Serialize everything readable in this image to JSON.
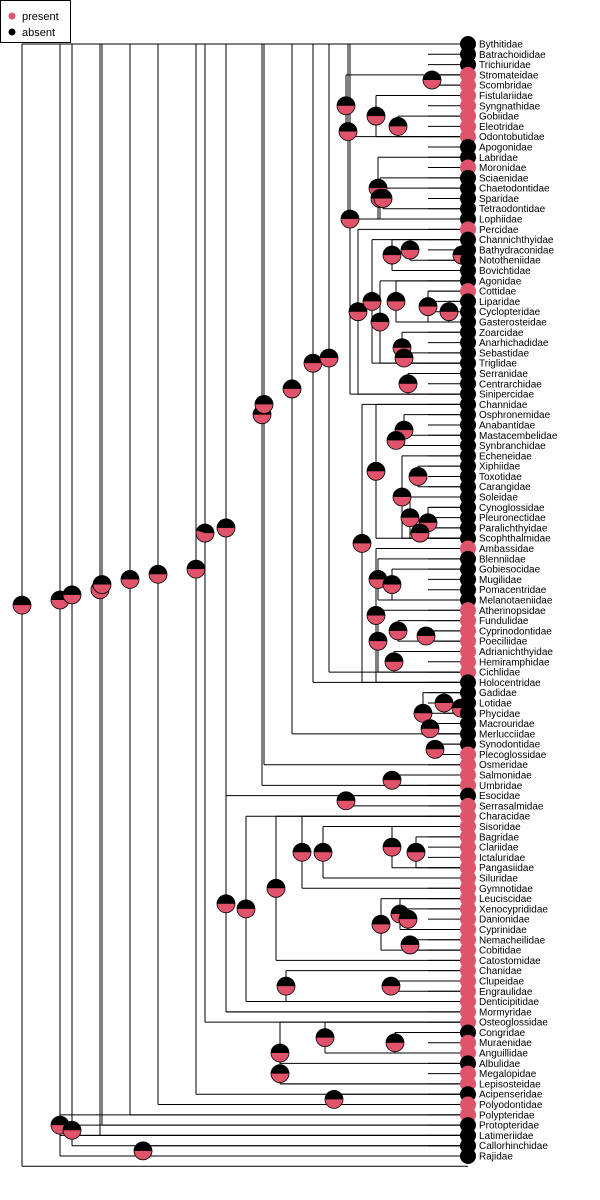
{
  "legend": {
    "states": [
      {
        "label": "present",
        "color": "#DF536B"
      },
      {
        "label": "absent",
        "color": "#000000"
      }
    ]
  },
  "tree": {
    "tips": [
      {
        "name": "Bythitidae",
        "state": "absent"
      },
      {
        "name": "Batrachoididae",
        "state": "absent"
      },
      {
        "name": "Trichiuridae",
        "state": "absent"
      },
      {
        "name": "Stromateidae",
        "state": "present"
      },
      {
        "name": "Scombridae",
        "state": "present"
      },
      {
        "name": "Fistulariidae",
        "state": "present"
      },
      {
        "name": "Syngnathidae",
        "state": "present"
      },
      {
        "name": "Gobiidae",
        "state": "present"
      },
      {
        "name": "Eleotridae",
        "state": "present"
      },
      {
        "name": "Odontobutidae",
        "state": "present"
      },
      {
        "name": "Apogonidae",
        "state": "absent"
      },
      {
        "name": "Labridae",
        "state": "absent"
      },
      {
        "name": "Moronidae",
        "state": "present"
      },
      {
        "name": "Sciaenidae",
        "state": "absent"
      },
      {
        "name": "Chaetodontidae",
        "state": "absent"
      },
      {
        "name": "Sparidae",
        "state": "absent"
      },
      {
        "name": "Tetraodontidae",
        "state": "absent"
      },
      {
        "name": "Lophiidae",
        "state": "absent"
      },
      {
        "name": "Percidae",
        "state": "present"
      },
      {
        "name": "Channichthyidae",
        "state": "absent"
      },
      {
        "name": "Bathydraconidae",
        "state": "absent"
      },
      {
        "name": "Nototheniidae",
        "state": "absent"
      },
      {
        "name": "Bovichtidae",
        "state": "absent"
      },
      {
        "name": "Agonidae",
        "state": "absent"
      },
      {
        "name": "Cottidae",
        "state": "present"
      },
      {
        "name": "Liparidae",
        "state": "absent"
      },
      {
        "name": "Cyclopteridae",
        "state": "absent"
      },
      {
        "name": "Gasterosteidae",
        "state": "absent"
      },
      {
        "name": "Zoarcidae",
        "state": "absent"
      },
      {
        "name": "Anarhichadidae",
        "state": "absent"
      },
      {
        "name": "Sebastidae",
        "state": "absent"
      },
      {
        "name": "Triglidae",
        "state": "absent"
      },
      {
        "name": "Serranidae",
        "state": "absent"
      },
      {
        "name": "Centrarchidae",
        "state": "absent"
      },
      {
        "name": "Sinipercidae",
        "state": "absent"
      },
      {
        "name": "Channidae",
        "state": "absent"
      },
      {
        "name": "Osphronemidae",
        "state": "absent"
      },
      {
        "name": "Anabantidae",
        "state": "absent"
      },
      {
        "name": "Mastacembelidae",
        "state": "absent"
      },
      {
        "name": "Synbranchidae",
        "state": "absent"
      },
      {
        "name": "Echeneidae",
        "state": "absent"
      },
      {
        "name": "Xiphiidae",
        "state": "absent"
      },
      {
        "name": "Toxotidae",
        "state": "absent"
      },
      {
        "name": "Carangidae",
        "state": "absent"
      },
      {
        "name": "Soleidae",
        "state": "absent"
      },
      {
        "name": "Cynoglossidae",
        "state": "absent"
      },
      {
        "name": "Pleuronectidae",
        "state": "absent"
      },
      {
        "name": "Paralichthyidae",
        "state": "absent"
      },
      {
        "name": "Scophthalmidae",
        "state": "absent"
      },
      {
        "name": "Ambassidae",
        "state": "present"
      },
      {
        "name": "Blenniidae",
        "state": "absent"
      },
      {
        "name": "Gobiesocidae",
        "state": "absent"
      },
      {
        "name": "Mugilidae",
        "state": "absent"
      },
      {
        "name": "Pomacentridae",
        "state": "absent"
      },
      {
        "name": "Melanotaeniidae",
        "state": "absent"
      },
      {
        "name": "Atherinopsidae",
        "state": "present"
      },
      {
        "name": "Fundulidae",
        "state": "present"
      },
      {
        "name": "Cyprinodontidae",
        "state": "present"
      },
      {
        "name": "Poeciliidae",
        "state": "present"
      },
      {
        "name": "Adrianichthyidae",
        "state": "present"
      },
      {
        "name": "Hemiramphidae",
        "state": "present"
      },
      {
        "name": "Cichlidae",
        "state": "present"
      },
      {
        "name": "Holocentridae",
        "state": "absent"
      },
      {
        "name": "Gadidae",
        "state": "absent"
      },
      {
        "name": "Lotidae",
        "state": "absent"
      },
      {
        "name": "Phycidae",
        "state": "absent"
      },
      {
        "name": "Macrouridae",
        "state": "absent"
      },
      {
        "name": "Merlucciidae",
        "state": "absent"
      },
      {
        "name": "Synodontidae",
        "state": "absent"
      },
      {
        "name": "Plecoglossidae",
        "state": "present"
      },
      {
        "name": "Osmeridae",
        "state": "present"
      },
      {
        "name": "Salmonidae",
        "state": "present"
      },
      {
        "name": "Umbridae",
        "state": "present"
      },
      {
        "name": "Esocidae",
        "state": "absent"
      },
      {
        "name": "Serrasalmidae",
        "state": "present"
      },
      {
        "name": "Characidae",
        "state": "present"
      },
      {
        "name": "Sisoridae",
        "state": "present"
      },
      {
        "name": "Bagridae",
        "state": "present"
      },
      {
        "name": "Clariidae",
        "state": "present"
      },
      {
        "name": "Ictaluridae",
        "state": "present"
      },
      {
        "name": "Pangasiidae",
        "state": "present"
      },
      {
        "name": "Siluridae",
        "state": "present"
      },
      {
        "name": "Gymnotidae",
        "state": "present"
      },
      {
        "name": "Leuciscidae",
        "state": "present"
      },
      {
        "name": "Xenocyprididae",
        "state": "present"
      },
      {
        "name": "Danionidae",
        "state": "present"
      },
      {
        "name": "Cyprinidae",
        "state": "present"
      },
      {
        "name": "Nemacheilidae",
        "state": "present"
      },
      {
        "name": "Cobitidae",
        "state": "present"
      },
      {
        "name": "Catostomidae",
        "state": "present"
      },
      {
        "name": "Chanidae",
        "state": "present"
      },
      {
        "name": "Clupeidae",
        "state": "present"
      },
      {
        "name": "Engraulidae",
        "state": "present"
      },
      {
        "name": "Denticipitidae",
        "state": "present"
      },
      {
        "name": "Mormyridae",
        "state": "present"
      },
      {
        "name": "Osteoglossidae",
        "state": "present"
      },
      {
        "name": "Congridae",
        "state": "absent"
      },
      {
        "name": "Muraenidae",
        "state": "present"
      },
      {
        "name": "Anguillidae",
        "state": "present"
      },
      {
        "name": "Albulidae",
        "state": "absent"
      },
      {
        "name": "Megalopidae",
        "state": "present"
      },
      {
        "name": "Lepisosteidae",
        "state": "present"
      },
      {
        "name": "Acipenseridae",
        "state": "absent"
      },
      {
        "name": "Polyodontidae",
        "state": "present"
      },
      {
        "name": "Polypteridae",
        "state": "present"
      },
      {
        "name": "Protopteridae",
        "state": "absent"
      },
      {
        "name": "Latimeriidae",
        "state": "absent"
      },
      {
        "name": "Callorhinchidae",
        "state": "absent"
      },
      {
        "name": "Rajidae",
        "state": "absent"
      }
    ],
    "nodes": [
      {
        "present": 0.5
      },
      {
        "present": 0.5
      },
      {
        "present": 0.5
      },
      {
        "present": 0.55
      },
      {
        "present": 0.5
      },
      {
        "present": 0.5
      },
      {
        "present": 0.5
      },
      {
        "present": 0.5
      },
      {
        "present": 0.55
      },
      {
        "present": 0.5
      },
      {
        "present": 0.5
      },
      {
        "present": 0.5
      },
      {
        "present": 0.5
      },
      {
        "present": 0.5
      },
      {
        "present": 0.5
      },
      {
        "present": 0.5
      },
      {
        "present": 0.5
      },
      {
        "present": 0.5
      },
      {
        "present": 0.5
      },
      {
        "present": 0.5
      },
      {
        "present": 0.5
      },
      {
        "present": 0.5
      },
      {
        "present": 0.5
      },
      {
        "present": 0.5
      },
      {
        "present": 0.5
      },
      {
        "present": 0.5
      },
      {
        "present": 0.5
      },
      {
        "present": 0.5
      },
      {
        "present": 0.5
      },
      {
        "present": 0.5
      },
      {
        "present": 0.5
      },
      {
        "present": 0.5
      },
      {
        "present": 0.5
      },
      {
        "present": 0.5
      },
      {
        "present": 0.5
      },
      {
        "present": 0.5
      },
      {
        "present": 0.5
      },
      {
        "present": 0.5
      },
      {
        "present": 0.5
      },
      {
        "present": 0.5
      },
      {
        "present": 0.5
      },
      {
        "present": 0.5
      },
      {
        "present": 0.5
      },
      {
        "present": 0.5
      },
      {
        "present": 0.5
      },
      {
        "present": 0.5
      },
      {
        "present": 0.5
      },
      {
        "present": 0.5
      },
      {
        "present": 0.5
      },
      {
        "present": 0.5
      },
      {
        "present": 0.5
      },
      {
        "present": 0.5
      },
      {
        "present": 0.5
      },
      {
        "present": 0.5
      },
      {
        "present": 0.5
      },
      {
        "present": 0.5
      },
      {
        "present": 0.5
      },
      {
        "present": 0.5
      },
      {
        "present": 0.5
      },
      {
        "present": 0.5
      },
      {
        "present": 0.5
      },
      {
        "present": 0.5
      },
      {
        "present": 0.5
      },
      {
        "present": 0.5
      },
      {
        "present": 0.5
      },
      {
        "present": 0.5
      },
      {
        "present": 0.5
      },
      {
        "present": 0.5
      },
      {
        "present": 0.5
      },
      {
        "present": 0.5
      },
      {
        "present": 0.5
      },
      {
        "present": 0.5
      },
      {
        "present": 0.5
      },
      {
        "present": 0.5
      },
      {
        "present": 0.5
      },
      {
        "present": 0.5
      },
      {
        "present": 0.5
      },
      {
        "present": 0.5
      },
      {
        "present": 0.5
      },
      {
        "present": 0.5
      },
      {
        "present": 0.5
      },
      {
        "present": 0.5
      },
      {
        "present": 0.5
      },
      {
        "present": 0.5
      },
      {
        "present": 0.5
      },
      {
        "present": 0.5
      },
      {
        "present": 0.5
      },
      {
        "present": 0.5
      },
      {
        "present": 0.5
      },
      {
        "present": 0.5
      },
      {
        "present": 0.5
      },
      {
        "present": 0.5
      },
      {
        "present": 0.5
      },
      {
        "present": 0.5
      },
      {
        "present": 0.5
      },
      {
        "present": 0.5
      },
      {
        "present": 0.5
      },
      {
        "present": 0.5
      },
      {
        "present": 0.5
      },
      {
        "present": 0.5
      },
      {
        "present": 0.5
      },
      {
        "present": 0.5
      },
      {
        "present": 0.5
      },
      {
        "present": 0.5
      },
      {
        "present": 0.5
      },
      {
        "present": 0.5
      },
      {
        "present": 0.5
      },
      {
        "present": 0.5
      },
      {
        "present": 0.5
      },
      {
        "present": 0.5
      },
      {
        "present": 0.5
      },
      {
        "present": 0.5
      },
      {
        "present": 0.5
      },
      {
        "present": 0.5
      },
      {
        "present": 0.5
      },
      {
        "present": 0.5
      },
      {
        "present": 0.5
      },
      {
        "present": 0.5
      },
      {
        "present": 0.5
      },
      {
        "present": 0.5
      }
    ]
  }
}
